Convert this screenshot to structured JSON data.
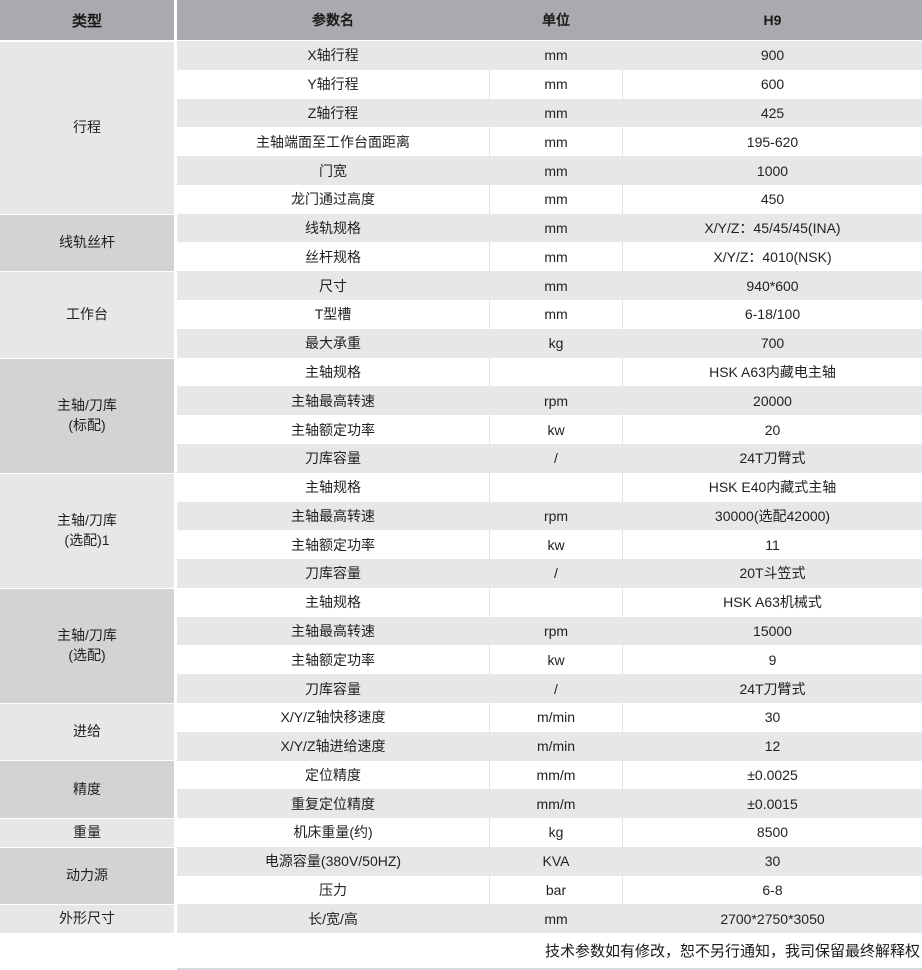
{
  "header": {
    "type_col": "类型",
    "param_col": "参数名",
    "unit_col": "单位",
    "model_col": "H9"
  },
  "categories": [
    {
      "label": "行程",
      "row_count": 6,
      "shade": "light"
    },
    {
      "label": "线轨丝杆",
      "row_count": 2,
      "shade": "dark"
    },
    {
      "label": "工作台",
      "row_count": 3,
      "shade": "light"
    },
    {
      "label": "主轴/刀库\n(标配)",
      "row_count": 4,
      "shade": "dark"
    },
    {
      "label": "主轴/刀库\n(选配)1",
      "row_count": 4,
      "shade": "light"
    },
    {
      "label": "主轴/刀库\n(选配)",
      "row_count": 4,
      "shade": "dark"
    },
    {
      "label": "进给",
      "row_count": 2,
      "shade": "light"
    },
    {
      "label": "精度",
      "row_count": 2,
      "shade": "dark"
    },
    {
      "label": "重量",
      "row_count": 1,
      "shade": "light"
    },
    {
      "label": "动力源",
      "row_count": 2,
      "shade": "dark"
    },
    {
      "label": "外形尺寸",
      "row_count": 1,
      "shade": "light"
    }
  ],
  "rows": [
    {
      "param": "X轴行程",
      "unit": "mm",
      "value": "900"
    },
    {
      "param": "Y轴行程",
      "unit": "mm",
      "value": "600"
    },
    {
      "param": "Z轴行程",
      "unit": "mm",
      "value": "425"
    },
    {
      "param": "主轴端面至工作台面距离",
      "unit": "mm",
      "value": "195-620"
    },
    {
      "param": "门宽",
      "unit": "mm",
      "value": "1000"
    },
    {
      "param": "龙门通过高度",
      "unit": "mm",
      "value": "450"
    },
    {
      "param": "线轨规格",
      "unit": "mm",
      "value": "X/Y/Z：45/45/45(INA)"
    },
    {
      "param": "丝杆规格",
      "unit": "mm",
      "value": "X/Y/Z：4010(NSK)"
    },
    {
      "param": "尺寸",
      "unit": "mm",
      "value": "940*600"
    },
    {
      "param": "T型槽",
      "unit": "mm",
      "value": "6-18/100"
    },
    {
      "param": "最大承重",
      "unit": "kg",
      "value": "700"
    },
    {
      "param": "主轴规格",
      "unit": "",
      "value": "HSK A63内藏电主轴"
    },
    {
      "param": "主轴最高转速",
      "unit": "rpm",
      "value": "20000"
    },
    {
      "param": "主轴额定功率",
      "unit": "kw",
      "value": "20"
    },
    {
      "param": "刀库容量",
      "unit": "/",
      "value": "24T刀臂式"
    },
    {
      "param": "主轴规格",
      "unit": "",
      "value": "HSK E40内藏式主轴"
    },
    {
      "param": "主轴最高转速",
      "unit": "rpm",
      "value": "30000(选配42000)"
    },
    {
      "param": "主轴额定功率",
      "unit": "kw",
      "value": "11"
    },
    {
      "param": "刀库容量",
      "unit": "/",
      "value": "20T斗笠式"
    },
    {
      "param": "主轴规格",
      "unit": "",
      "value": "HSK A63机械式"
    },
    {
      "param": "主轴最高转速",
      "unit": "rpm",
      "value": "15000"
    },
    {
      "param": "主轴额定功率",
      "unit": "kw",
      "value": "9"
    },
    {
      "param": "刀库容量",
      "unit": "/",
      "value": "24T刀臂式"
    },
    {
      "param": "X/Y/Z轴快移速度",
      "unit": "m/min",
      "value": "30"
    },
    {
      "param": "X/Y/Z轴进给速度",
      "unit": "m/min",
      "value": "12"
    },
    {
      "param": "定位精度",
      "unit": "mm/m",
      "value": "±0.0025"
    },
    {
      "param": "重复定位精度",
      "unit": "mm/m",
      "value": "±0.0015"
    },
    {
      "param": "机床重量(约)",
      "unit": "kg",
      "value": "8500"
    },
    {
      "param": "电源容量(380V/50HZ)",
      "unit": "KVA",
      "value": "30"
    },
    {
      "param": "压力",
      "unit": "bar",
      "value": "6-8"
    },
    {
      "param": "长/宽/高",
      "unit": "mm",
      "value": "2700*2750*3050"
    }
  ],
  "footer": {
    "note": "技术参数如有修改，恕不另行通知，我司保留最终解释权"
  },
  "colors": {
    "header_bg": "#a8aaad",
    "row_gray": "#e6e7e8",
    "category_dark": "#d1d3d4",
    "text": "#231f20",
    "separator_white": "#ffffff",
    "unit_border": "#e0e1e3",
    "bottom_rule": "#d8d9db"
  }
}
